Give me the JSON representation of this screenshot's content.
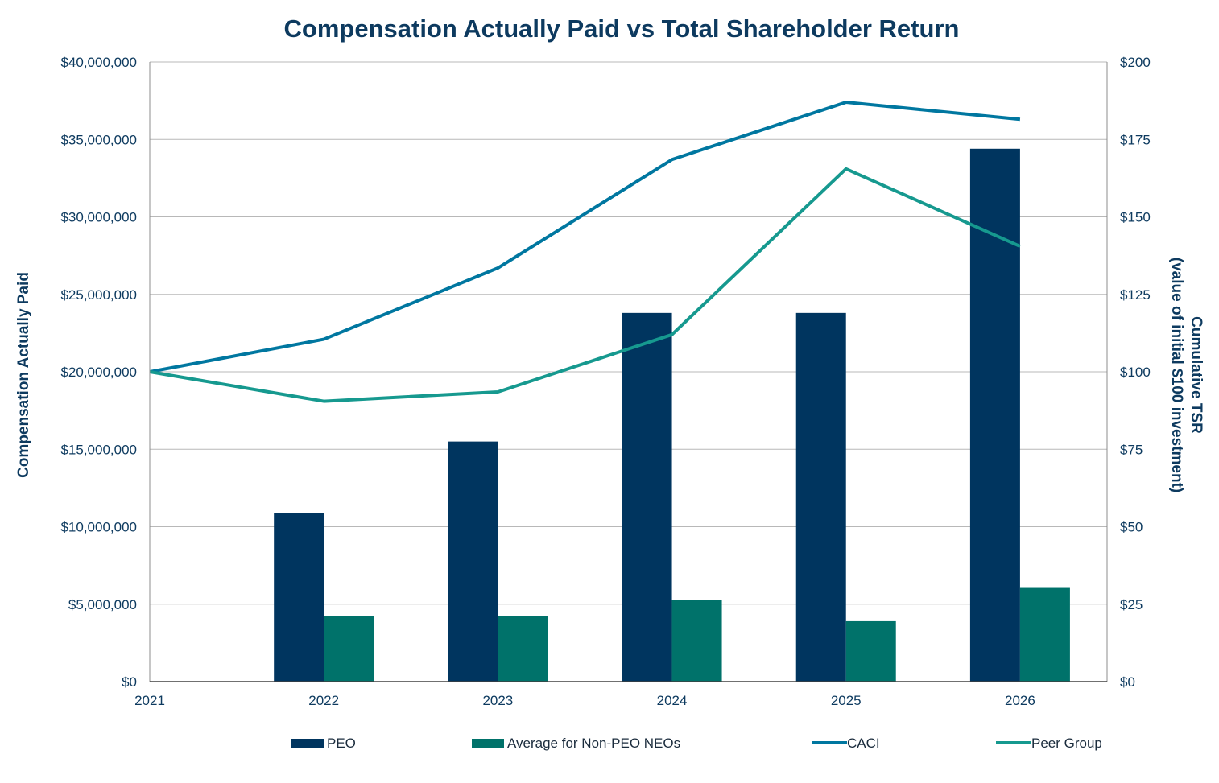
{
  "chart_data": {
    "type": "bar",
    "title": "Compensation Actually Paid vs Total Shareholder Return",
    "categories": [
      "2021",
      "2022",
      "2023",
      "2024",
      "2025",
      "2026"
    ],
    "ylabel": "Compensation Actually Paid",
    "y2label_line1": "Cumulative TSR",
    "y2label_line2": "(value of initial $100 investment)",
    "ylim": [
      0,
      40000000
    ],
    "y2lim": [
      0,
      200
    ],
    "yticks": [
      "$0",
      "$5,000,000",
      "$10,000,000",
      "$15,000,000",
      "$20,000,000",
      "$25,000,000",
      "$30,000,000",
      "$35,000,000",
      "$40,000,000"
    ],
    "y2ticks": [
      "$0",
      "$25",
      "$50",
      "$75",
      "$100",
      "$125",
      "$150",
      "$175",
      "$200"
    ],
    "grid": true,
    "legend_position": "bottom",
    "bar_series": [
      {
        "name": "PEO",
        "color": "#00355f",
        "values": [
          null,
          10900000,
          15500000,
          23800000,
          23800000,
          34400000
        ]
      },
      {
        "name": "Average for Non-PEO NEOs",
        "color": "#00726a",
        "values": [
          null,
          4250000,
          4250000,
          5250000,
          3900000,
          6050000
        ]
      }
    ],
    "line_series": [
      {
        "name": "CACI",
        "color": "#0077a0",
        "axis": "right",
        "values": [
          100,
          110.5,
          133.5,
          168.5,
          187,
          181.5
        ]
      },
      {
        "name": "Peer Group",
        "color": "#16998f",
        "axis": "right",
        "values": [
          100,
          90.5,
          93.5,
          112,
          165.5,
          140.5
        ]
      }
    ]
  }
}
